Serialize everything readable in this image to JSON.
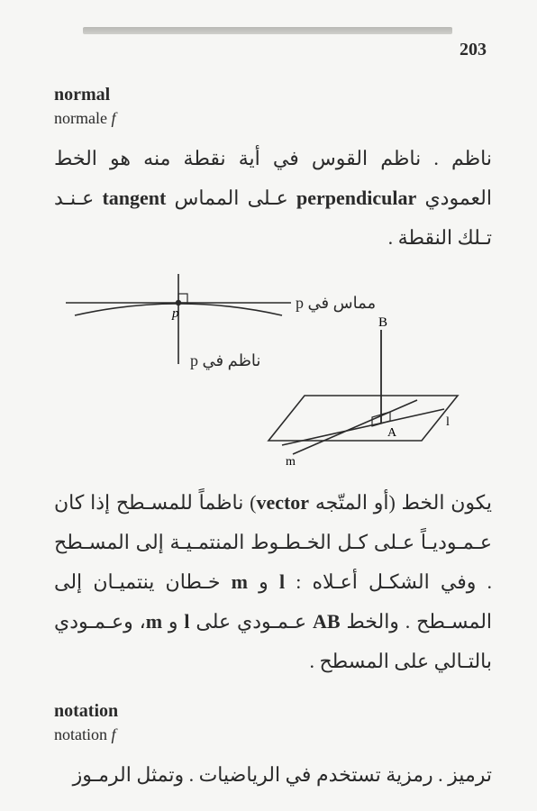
{
  "page": {
    "number": "203"
  },
  "entry1": {
    "en": "normal",
    "fr_word": "normale",
    "fr_gender": "f",
    "ar_p1_segs": [
      {
        "t": "ناظم .  ناظم القوس في أية نقطة منه هو الخط العمودي ",
        "latin": false
      },
      {
        "t": "perpendicular",
        "latin": true
      },
      {
        "t": " عـلى المماس ",
        "latin": false
      },
      {
        "t": "tangent",
        "latin": true
      },
      {
        "t": " عـنـد تـلك النقطة .",
        "latin": false
      }
    ],
    "fig1": {
      "tangent_label_ar": "مماس في",
      "tangent_label_lat": "p",
      "normal_label_ar": "ناظم في",
      "normal_label_lat": "p",
      "point_label": "p",
      "B": "B",
      "A": "A",
      "l": "l",
      "m": "m",
      "stroke": "#2a2a2a",
      "stroke_w": 1.6
    },
    "ar_p2_segs": [
      {
        "t": "يكون الخط (أو المتّجه ",
        "latin": false
      },
      {
        "t": "vector",
        "latin": true
      },
      {
        "t": ") ناظماً للمسـطح إذا كان عـمـوديـاً عـلى كـل الخـطـوط المنتمـيـة إلى المسـطح .  وفي الشكـل أعـلاه : ",
        "latin": false
      },
      {
        "t": "l",
        "latin": true
      },
      {
        "t": " و ",
        "latin": false
      },
      {
        "t": "m",
        "latin": true
      },
      {
        "t": " خـطان ينتميـان إلى المسـطح . والخط ",
        "latin": false
      },
      {
        "t": "AB",
        "latin": true
      },
      {
        "t": " عـمـودي على ",
        "latin": false
      },
      {
        "t": "l",
        "latin": true
      },
      {
        "t": " و ",
        "latin": false
      },
      {
        "t": "m",
        "latin": true
      },
      {
        "t": "، وعـمـودي بالتـالي على المسطح .",
        "latin": false
      }
    ]
  },
  "entry2": {
    "en": "notation",
    "fr_word": "notation",
    "fr_gender": "f",
    "ar_p1": "ترميز .  رمزية تستخدم في الرياضيات .  وتمثل الرمـوز"
  }
}
